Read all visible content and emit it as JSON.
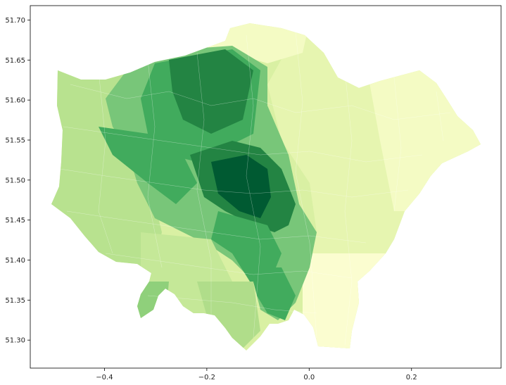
{
  "chart_data": {
    "type": "map",
    "description_visible": "London ward choropleth (green = high, yellow = low)",
    "x_ticks": [
      -0.4,
      -0.2,
      0.0,
      0.2
    ],
    "x_tick_labels": [
      "−0.4",
      "−0.2",
      "0.0",
      "0.2"
    ],
    "y_ticks": [
      51.3,
      51.35,
      51.4,
      51.45,
      51.5,
      51.55,
      51.6,
      51.65,
      51.7
    ],
    "y_tick_labels": [
      "51.30",
      "51.35",
      "51.40",
      "51.45",
      "51.50",
      "51.55",
      "51.60",
      "51.65",
      "51.70"
    ],
    "xlim": [
      -0.545,
      0.375
    ],
    "ylim": [
      51.265,
      51.718
    ],
    "colormap": [
      "#ffffcc",
      "#d9f0a3",
      "#addd8e",
      "#78c679",
      "#41ab5d",
      "#238443",
      "#005a32"
    ],
    "title": "",
    "xlabel": "",
    "ylabel": ""
  }
}
